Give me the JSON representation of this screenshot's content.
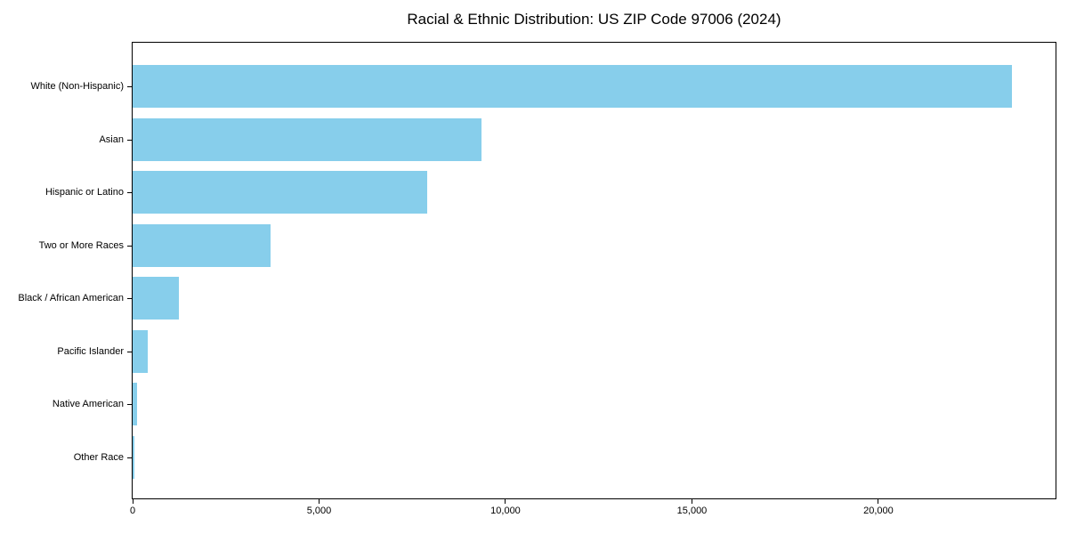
{
  "chart_data": {
    "type": "bar",
    "orientation": "horizontal",
    "title": "Racial & Ethnic Distribution: US ZIP Code 97006 (2024)",
    "categories": [
      "White (Non-Hispanic)",
      "Asian",
      "Hispanic or Latino",
      "Two or More Races",
      "Black / African American",
      "Pacific Islander",
      "Native American",
      "Other Race"
    ],
    "values": [
      23570,
      9350,
      7900,
      3710,
      1230,
      410,
      125,
      55
    ],
    "bar_color": "#87CEEB",
    "background_color": "#ffffff",
    "axis_color": "#000000",
    "xlabel": "",
    "ylabel": "",
    "xlim": [
      0,
      24750
    ],
    "xticks": [
      0,
      5000,
      10000,
      15000,
      20000
    ],
    "xtick_labels": [
      "0",
      "5,000",
      "10,000",
      "15,000",
      "20,000"
    ],
    "grid": false,
    "legend": false
  }
}
